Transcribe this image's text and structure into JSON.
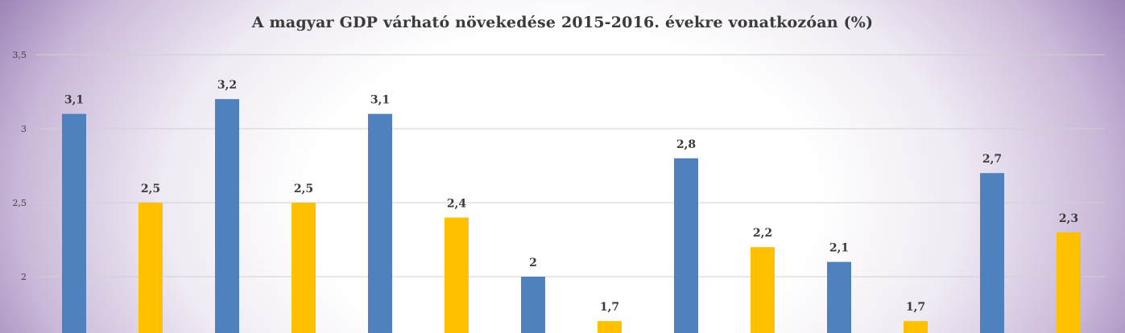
{
  "chart_data": {
    "type": "bar",
    "title": "A magyar GDP várható növekedése 2015-2016. évekre vonatkozóan (%)",
    "xlabel": "",
    "ylabel": "",
    "ylim": [
      1.7,
      3.5
    ],
    "y_ticks": [
      2,
      2.5,
      3,
      3.5
    ],
    "y_tick_labels": [
      "2",
      "2,5",
      "3",
      "3,5"
    ],
    "grid": true,
    "categories": [
      "",
      "",
      "",
      "",
      "",
      "",
      ""
    ],
    "series": [
      {
        "color": "#4f81bd",
        "values": [
          3.1,
          3.2,
          3.1,
          2.0,
          2.8,
          2.1,
          2.7
        ],
        "labels": [
          "3,1",
          "3,2",
          "3,1",
          "2",
          "2,8",
          "2,1",
          "2,7"
        ]
      },
      {
        "color": "#ffc000",
        "values": [
          2.5,
          2.5,
          2.4,
          1.7,
          2.2,
          1.7,
          2.3
        ],
        "labels": [
          "2,5",
          "2,5",
          "2,4",
          "1,7",
          "2,2",
          "1,7",
          "2,3"
        ]
      }
    ]
  }
}
